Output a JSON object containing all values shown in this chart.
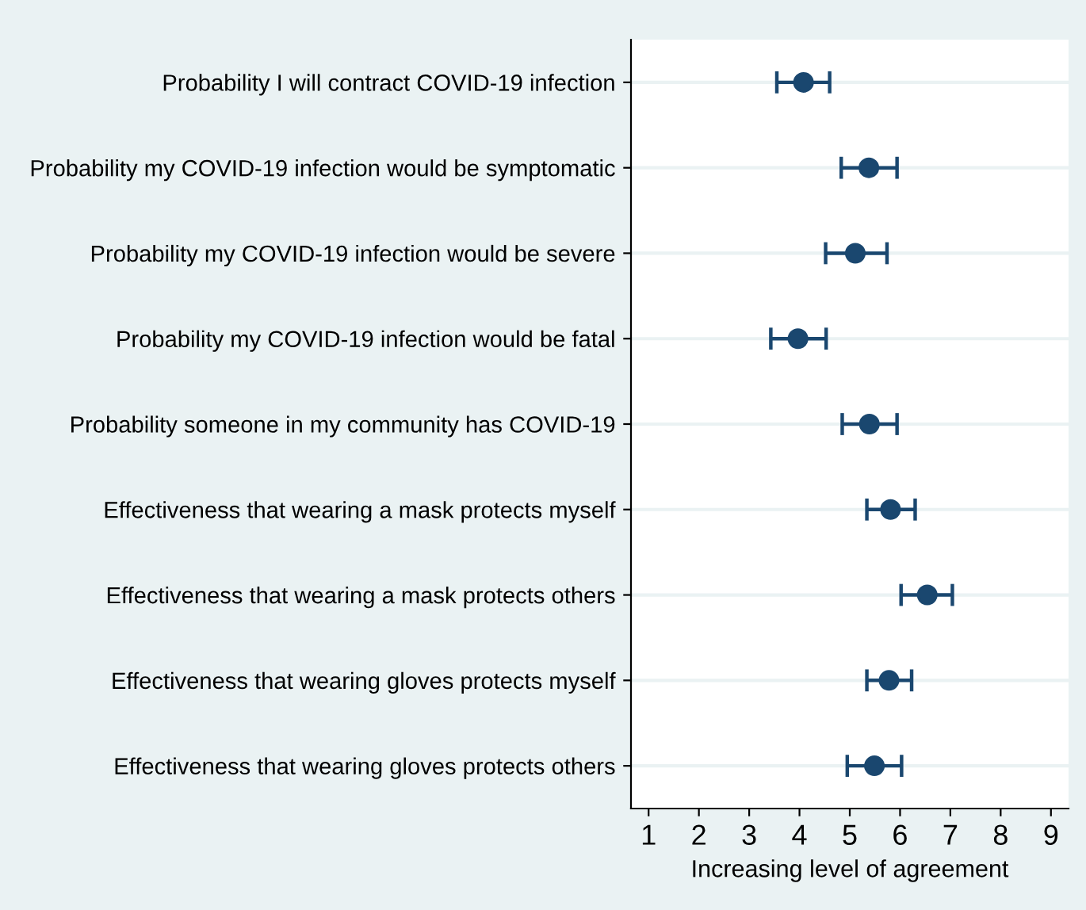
{
  "chart_data": {
    "type": "scatter",
    "orientation": "horizontal",
    "xlabel": "Increasing level of agreement",
    "categories": [
      "Probability I will contract COVID-19 infection",
      "Probability my COVID-19 infection would be symptomatic",
      "Probability my COVID-19 infection would be severe",
      "Probability my COVID-19 infection would be fatal",
      "Probability someone in my community has COVID-19",
      "Effectiveness that wearing a mask protects myself",
      "Effectiveness that wearing a mask protects others",
      "Effectiveness that wearing gloves protects myself",
      "Effectiveness that wearing gloves protects others"
    ],
    "series": [
      {
        "color": "#1a476f",
        "values": [
          4.08,
          5.38,
          5.11,
          3.97,
          5.39,
          5.81,
          6.54,
          5.78,
          5.49
        ],
        "errors": [
          [
            3.55,
            4.6
          ],
          [
            4.83,
            5.94
          ],
          [
            4.52,
            5.74
          ],
          [
            3.43,
            4.53
          ],
          [
            4.85,
            5.94
          ],
          [
            5.34,
            6.3
          ],
          [
            6.02,
            7.04
          ],
          [
            5.34,
            6.23
          ],
          [
            4.95,
            6.03
          ]
        ]
      }
    ],
    "xlim": [
      0.65,
      9.35
    ],
    "xticks": [
      1,
      2,
      3,
      4,
      5,
      6,
      7,
      8,
      9
    ],
    "grid": "y",
    "marker": "circle"
  }
}
